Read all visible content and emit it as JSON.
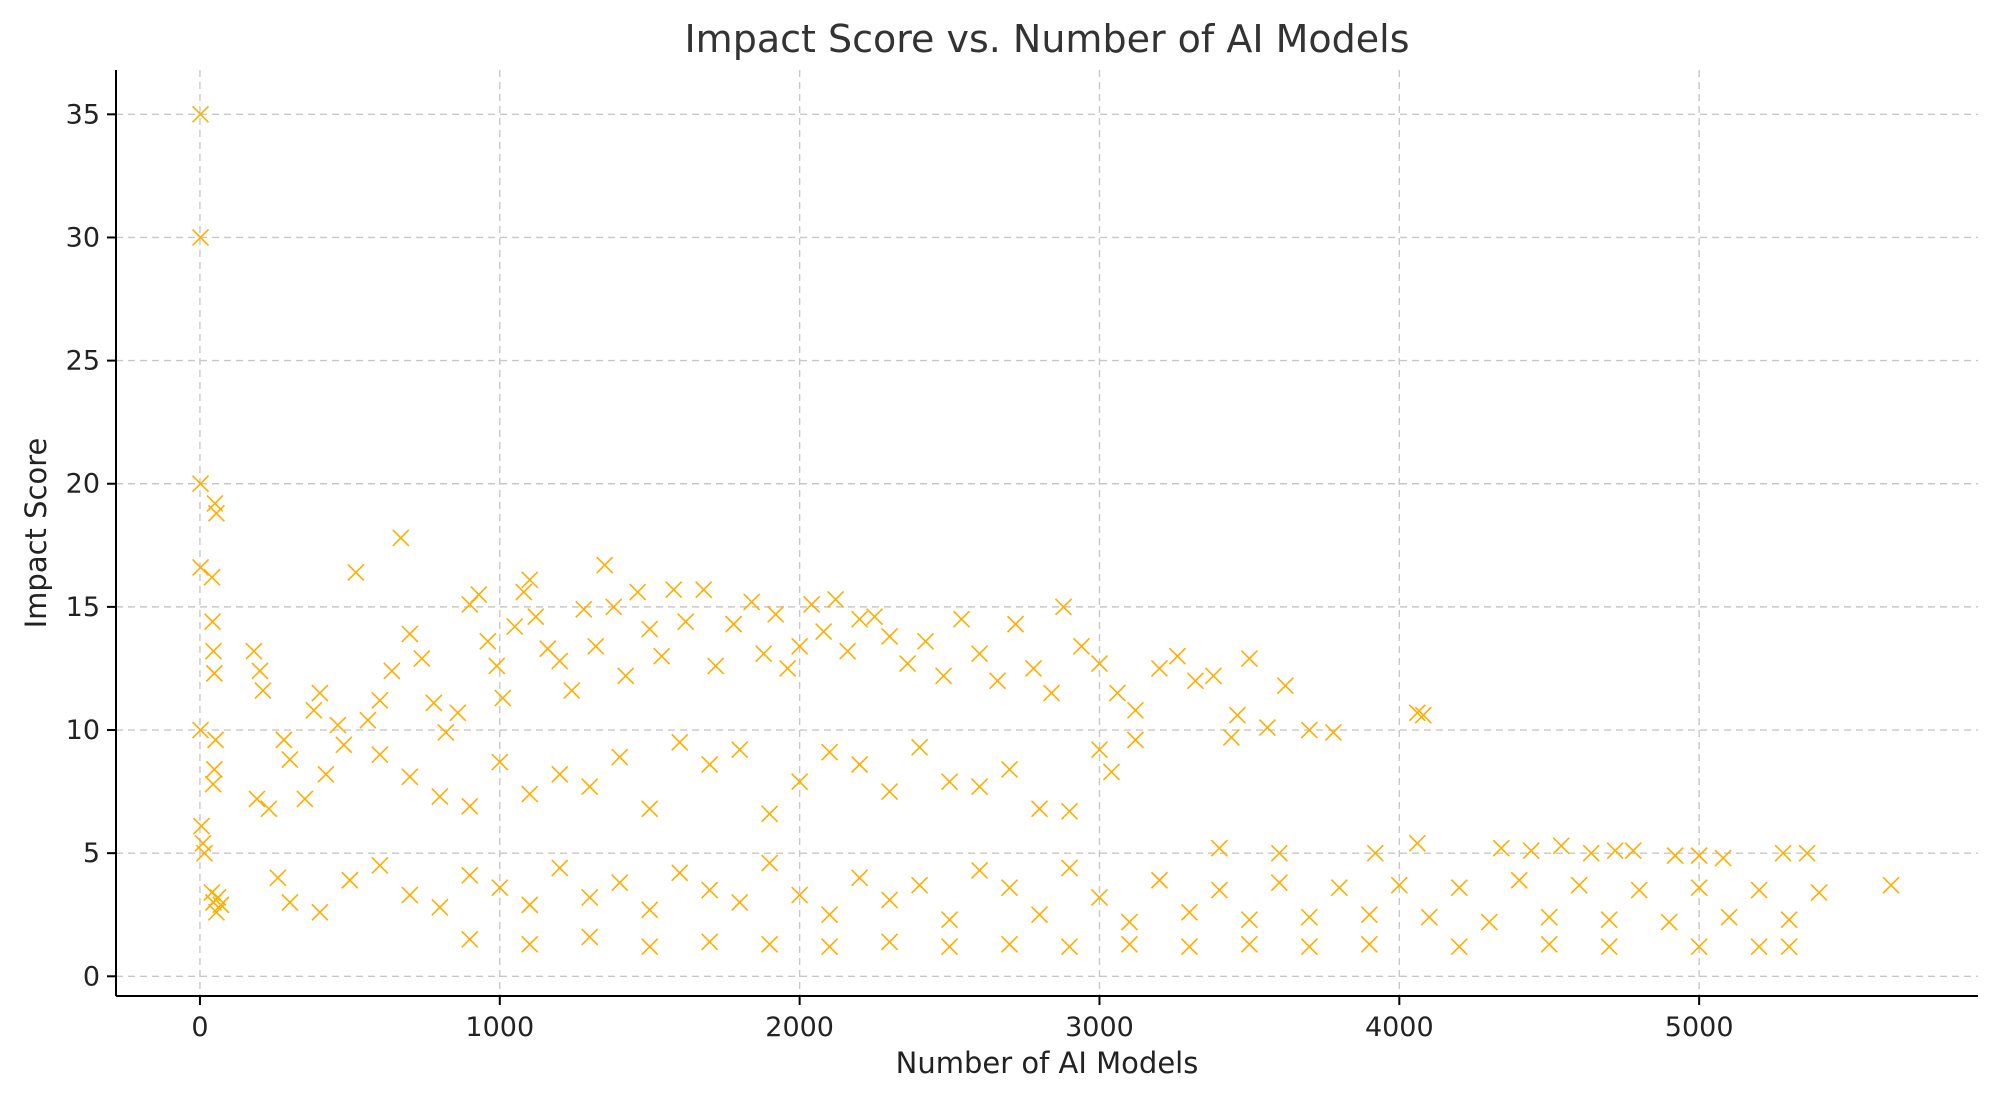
{
  "chart_data": {
    "type": "scatter",
    "title": "Impact Score vs. Number of AI Models",
    "xlabel": "Number of AI Models",
    "ylabel": "Impact Score",
    "xlim": [
      -280,
      5930
    ],
    "ylim": [
      -0.8,
      36.8
    ],
    "x_ticks": [
      "0",
      "1000",
      "2000",
      "3000",
      "4000",
      "5000"
    ],
    "y_ticks": [
      "0",
      "5",
      "10",
      "15",
      "20",
      "25",
      "30",
      "35"
    ],
    "x_tick_values": [
      0,
      1000,
      2000,
      3000,
      4000,
      5000
    ],
    "y_tick_values": [
      0,
      5,
      10,
      15,
      20,
      25,
      30,
      35
    ],
    "grid": true,
    "marker": "x",
    "color": "#FFAE00",
    "series": [
      {
        "points": [
          [
            2,
            35.0
          ],
          [
            2,
            30.0
          ],
          [
            2,
            20.0
          ],
          [
            2,
            16.6
          ],
          [
            2,
            10.0
          ],
          [
            40,
            16.2
          ],
          [
            42,
            14.4
          ],
          [
            45,
            13.2
          ],
          [
            48,
            12.3
          ],
          [
            50,
            19.2
          ],
          [
            55,
            18.8
          ],
          [
            52,
            9.6
          ],
          [
            48,
            8.4
          ],
          [
            44,
            7.8
          ],
          [
            5,
            6.1
          ],
          [
            10,
            5.4
          ],
          [
            15,
            5.0
          ],
          [
            40,
            3.4
          ],
          [
            45,
            3.0
          ],
          [
            55,
            2.6
          ],
          [
            60,
            3.2
          ],
          [
            70,
            2.9
          ],
          [
            180,
            13.2
          ],
          [
            200,
            12.4
          ],
          [
            210,
            11.6
          ],
          [
            190,
            7.2
          ],
          [
            230,
            6.8
          ],
          [
            260,
            4.0
          ],
          [
            280,
            9.6
          ],
          [
            300,
            8.8
          ],
          [
            350,
            7.2
          ],
          [
            380,
            10.8
          ],
          [
            400,
            11.5
          ],
          [
            420,
            8.2
          ],
          [
            460,
            10.2
          ],
          [
            480,
            9.4
          ],
          [
            520,
            16.4
          ],
          [
            560,
            10.4
          ],
          [
            600,
            11.2
          ],
          [
            640,
            12.4
          ],
          [
            670,
            17.8
          ],
          [
            700,
            13.9
          ],
          [
            740,
            12.9
          ],
          [
            780,
            11.1
          ],
          [
            820,
            9.9
          ],
          [
            860,
            10.7
          ],
          [
            900,
            15.1
          ],
          [
            930,
            15.5
          ],
          [
            960,
            13.6
          ],
          [
            990,
            12.6
          ],
          [
            1010,
            11.3
          ],
          [
            1050,
            14.2
          ],
          [
            1080,
            15.6
          ],
          [
            1100,
            16.1
          ],
          [
            1120,
            14.6
          ],
          [
            1160,
            13.3
          ],
          [
            1200,
            12.8
          ],
          [
            1240,
            11.6
          ],
          [
            1280,
            14.9
          ],
          [
            1320,
            13.4
          ],
          [
            1350,
            16.7
          ],
          [
            1380,
            15.0
          ],
          [
            1420,
            12.2
          ],
          [
            1460,
            15.6
          ],
          [
            1500,
            14.1
          ],
          [
            1540,
            13.0
          ],
          [
            1580,
            15.7
          ],
          [
            1620,
            14.4
          ],
          [
            1680,
            15.7
          ],
          [
            1720,
            12.6
          ],
          [
            1780,
            14.3
          ],
          [
            1840,
            15.2
          ],
          [
            1880,
            13.1
          ],
          [
            1920,
            14.7
          ],
          [
            1960,
            12.5
          ],
          [
            2000,
            13.4
          ],
          [
            2040,
            15.1
          ],
          [
            2080,
            14.0
          ],
          [
            2120,
            15.3
          ],
          [
            2160,
            13.2
          ],
          [
            2200,
            14.5
          ],
          [
            2250,
            14.6
          ],
          [
            2300,
            13.8
          ],
          [
            2360,
            12.7
          ],
          [
            2420,
            13.6
          ],
          [
            2480,
            12.2
          ],
          [
            2540,
            14.5
          ],
          [
            2600,
            13.1
          ],
          [
            2660,
            12.0
          ],
          [
            2720,
            14.3
          ],
          [
            2780,
            12.5
          ],
          [
            2840,
            11.5
          ],
          [
            2880,
            15.0
          ],
          [
            2940,
            13.4
          ],
          [
            3000,
            12.7
          ],
          [
            3060,
            11.5
          ],
          [
            3120,
            10.8
          ],
          [
            3200,
            12.5
          ],
          [
            3260,
            13.0
          ],
          [
            3320,
            12.0
          ],
          [
            3380,
            12.2
          ],
          [
            3460,
            10.6
          ],
          [
            3500,
            12.9
          ],
          [
            3560,
            10.1
          ],
          [
            3620,
            11.8
          ],
          [
            3700,
            10.0
          ],
          [
            3780,
            9.9
          ],
          [
            4060,
            10.7
          ],
          [
            4080,
            10.6
          ],
          [
            600,
            9.0
          ],
          [
            700,
            8.1
          ],
          [
            800,
            7.3
          ],
          [
            900,
            6.9
          ],
          [
            1000,
            8.7
          ],
          [
            1100,
            7.4
          ],
          [
            1200,
            8.2
          ],
          [
            1300,
            7.7
          ],
          [
            1400,
            8.9
          ],
          [
            1500,
            6.8
          ],
          [
            1600,
            9.5
          ],
          [
            1700,
            8.6
          ],
          [
            1800,
            9.2
          ],
          [
            1900,
            6.6
          ],
          [
            2000,
            7.9
          ],
          [
            2100,
            9.1
          ],
          [
            2200,
            8.6
          ],
          [
            2300,
            7.5
          ],
          [
            2400,
            9.3
          ],
          [
            2500,
            7.9
          ],
          [
            2600,
            7.7
          ],
          [
            2700,
            8.4
          ],
          [
            2800,
            6.8
          ],
          [
            2900,
            6.7
          ],
          [
            3000,
            9.2
          ],
          [
            3040,
            8.3
          ],
          [
            3120,
            9.6
          ],
          [
            3440,
            9.7
          ],
          [
            300,
            3.0
          ],
          [
            400,
            2.6
          ],
          [
            500,
            3.9
          ],
          [
            600,
            4.5
          ],
          [
            700,
            3.3
          ],
          [
            800,
            2.8
          ],
          [
            900,
            4.1
          ],
          [
            1000,
            3.6
          ],
          [
            1100,
            2.9
          ],
          [
            1200,
            4.4
          ],
          [
            1300,
            3.2
          ],
          [
            1400,
            3.8
          ],
          [
            1500,
            2.7
          ],
          [
            1600,
            4.2
          ],
          [
            1700,
            3.5
          ],
          [
            1800,
            3.0
          ],
          [
            1900,
            4.6
          ],
          [
            2000,
            3.3
          ],
          [
            2100,
            2.5
          ],
          [
            2200,
            4.0
          ],
          [
            2300,
            3.1
          ],
          [
            2400,
            3.7
          ],
          [
            2500,
            2.3
          ],
          [
            2600,
            4.3
          ],
          [
            2700,
            3.6
          ],
          [
            2800,
            2.5
          ],
          [
            2900,
            4.4
          ],
          [
            3000,
            3.2
          ],
          [
            3100,
            2.2
          ],
          [
            3200,
            3.9
          ],
          [
            3300,
            2.6
          ],
          [
            3400,
            3.5
          ],
          [
            3500,
            2.3
          ],
          [
            3600,
            3.8
          ],
          [
            3700,
            2.4
          ],
          [
            3800,
            3.6
          ],
          [
            3900,
            2.5
          ],
          [
            4000,
            3.7
          ],
          [
            4100,
            2.4
          ],
          [
            4200,
            3.6
          ],
          [
            4300,
            2.2
          ],
          [
            4400,
            3.9
          ],
          [
            4500,
            2.4
          ],
          [
            4600,
            3.7
          ],
          [
            4700,
            2.3
          ],
          [
            4800,
            3.5
          ],
          [
            4900,
            2.2
          ],
          [
            5000,
            3.6
          ],
          [
            5100,
            2.4
          ],
          [
            5200,
            3.5
          ],
          [
            5300,
            2.3
          ],
          [
            5400,
            3.4
          ],
          [
            900,
            1.5
          ],
          [
            1100,
            1.3
          ],
          [
            1300,
            1.6
          ],
          [
            1500,
            1.2
          ],
          [
            1700,
            1.4
          ],
          [
            1900,
            1.3
          ],
          [
            2100,
            1.2
          ],
          [
            2300,
            1.4
          ],
          [
            2500,
            1.2
          ],
          [
            2700,
            1.3
          ],
          [
            2900,
            1.2
          ],
          [
            3100,
            1.3
          ],
          [
            3300,
            1.2
          ],
          [
            3500,
            1.3
          ],
          [
            3700,
            1.2
          ],
          [
            3900,
            1.3
          ],
          [
            4200,
            1.2
          ],
          [
            4500,
            1.3
          ],
          [
            4700,
            1.2
          ],
          [
            5000,
            1.2
          ],
          [
            5200,
            1.2
          ],
          [
            5300,
            1.2
          ],
          [
            3400,
            5.2
          ],
          [
            3600,
            5.0
          ],
          [
            3920,
            5.0
          ],
          [
            4060,
            5.4
          ],
          [
            4340,
            5.2
          ],
          [
            4440,
            5.1
          ],
          [
            4540,
            5.3
          ],
          [
            4640,
            5.0
          ],
          [
            4720,
            5.1
          ],
          [
            4780,
            5.1
          ],
          [
            4920,
            4.9
          ],
          [
            5000,
            4.9
          ],
          [
            5080,
            4.8
          ],
          [
            5280,
            5.0
          ],
          [
            5360,
            5.0
          ],
          [
            5640,
            3.7
          ]
        ]
      }
    ]
  }
}
